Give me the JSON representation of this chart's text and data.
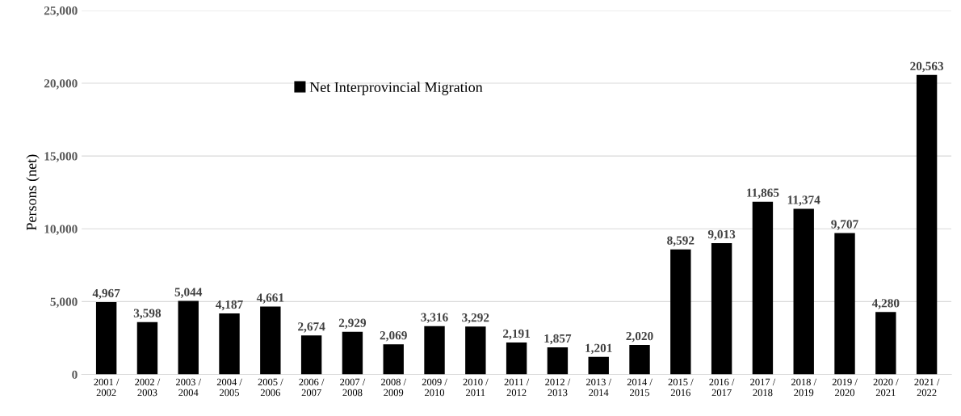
{
  "chart_data": {
    "type": "bar",
    "ylabel": "Persons (net)",
    "categories": [
      "2001 /\n2002",
      "2002 /\n2003",
      "2003 /\n2004",
      "2004 /\n2005",
      "2005 /\n2006",
      "2006 /\n2007",
      "2007 /\n2008",
      "2008 /\n2009",
      "2009 /\n2010",
      "2010 /\n2011",
      "2011 /\n2012",
      "2012 /\n2013",
      "2013 /\n2014",
      "2014 /\n2015",
      "2015 /\n2016",
      "2016 /\n2017",
      "2017 /\n2018",
      "2018 /\n2019",
      "2019 /\n2020",
      "2020 /\n2021",
      "2021 /\n2022"
    ],
    "series": [
      {
        "name": "Net Interprovincial Migration",
        "color": "#000000",
        "values": [
          4967,
          3598,
          5044,
          4187,
          4661,
          2674,
          2929,
          2069,
          3316,
          3292,
          2191,
          1857,
          1201,
          2020,
          8592,
          9013,
          11865,
          11374,
          9707,
          4280,
          20563
        ]
      }
    ],
    "ylim": [
      0,
      25000
    ],
    "yticks": [
      0,
      {
        "value": 5000,
        "label": "5,000"
      },
      {
        "value": 10000,
        "label": "10,000"
      },
      {
        "value": 15000,
        "label": "15,000"
      },
      {
        "value": 20000,
        "label": "20,000"
      },
      {
        "value": 25000,
        "label": "25,000"
      }
    ],
    "value_labels": [
      "4,967",
      "3,598",
      "5,044",
      "4,187",
      "4,661",
      "2,674",
      "2,929",
      "2,069",
      "3,316",
      "3,292",
      "2,191",
      "1,857",
      "1,201",
      "2,020",
      "8,592",
      "9,013",
      "11,865",
      "11,374",
      "9,707",
      "4,280",
      "20,563"
    ],
    "grid": "y",
    "legend": "top left"
  }
}
